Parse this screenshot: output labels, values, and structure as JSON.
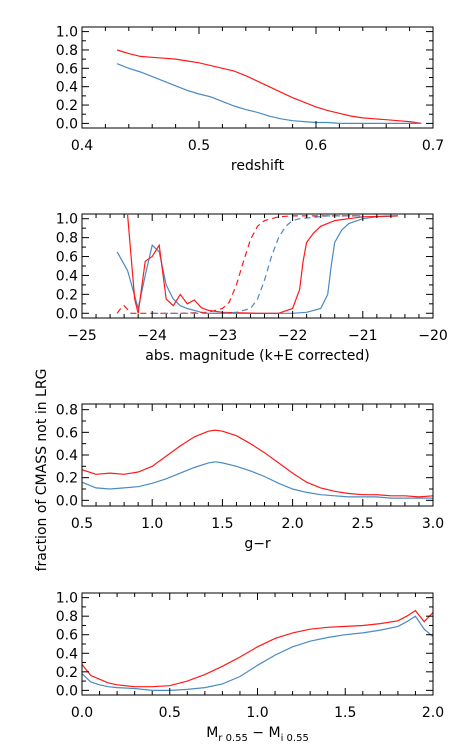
{
  "figure": {
    "shared_ylabel": "fraction of CMASS not in LRG"
  },
  "colors": {
    "red": "#ff1a1a",
    "blue": "#4a8ac4",
    "axis": "#000000"
  },
  "chart_data": [
    {
      "type": "line",
      "title": "",
      "xlabel": "redshift",
      "ylabel": "",
      "xlim": [
        0.4,
        0.7
      ],
      "ylim": [
        -0.05,
        1.05
      ],
      "xticks": [
        0.4,
        0.5,
        0.6,
        0.7
      ],
      "xtick_labels": [
        "0.4",
        "0.5",
        "0.6",
        "0.7"
      ],
      "yticks": [
        0.0,
        0.2,
        0.4,
        0.6,
        0.8,
        1.0
      ],
      "ytick_labels": [
        "0.0",
        "0.2",
        "0.4",
        "0.6",
        "0.8",
        "1.0"
      ],
      "grid": false,
      "series": [
        {
          "color": "red",
          "style": "solid",
          "x": [
            0.43,
            0.44,
            0.45,
            0.46,
            0.47,
            0.48,
            0.49,
            0.5,
            0.51,
            0.52,
            0.53,
            0.54,
            0.55,
            0.56,
            0.57,
            0.58,
            0.59,
            0.6,
            0.61,
            0.62,
            0.63,
            0.64,
            0.65,
            0.66,
            0.67,
            0.68,
            0.69
          ],
          "y": [
            0.8,
            0.76,
            0.73,
            0.72,
            0.71,
            0.7,
            0.68,
            0.66,
            0.63,
            0.6,
            0.57,
            0.52,
            0.46,
            0.4,
            0.34,
            0.28,
            0.23,
            0.18,
            0.14,
            0.11,
            0.08,
            0.06,
            0.05,
            0.04,
            0.03,
            0.02,
            0.0
          ]
        },
        {
          "color": "blue",
          "style": "solid",
          "x": [
            0.43,
            0.44,
            0.45,
            0.46,
            0.47,
            0.48,
            0.49,
            0.5,
            0.51,
            0.52,
            0.53,
            0.54,
            0.55,
            0.56,
            0.57,
            0.58,
            0.59,
            0.6,
            0.61,
            0.62,
            0.63,
            0.64,
            0.65,
            0.66,
            0.67,
            0.68,
            0.69
          ],
          "y": [
            0.65,
            0.6,
            0.56,
            0.51,
            0.46,
            0.41,
            0.36,
            0.32,
            0.29,
            0.24,
            0.19,
            0.15,
            0.12,
            0.08,
            0.05,
            0.03,
            0.02,
            0.01,
            0.01,
            0.0,
            0.0,
            0.0,
            0.0,
            0.0,
            0.0,
            0.0,
            0.0
          ]
        }
      ]
    },
    {
      "type": "line",
      "title": "",
      "xlabel": "abs. magnitude (k+E corrected)",
      "ylabel": "",
      "xlim": [
        -25,
        -20
      ],
      "ylim": [
        -0.05,
        1.05
      ],
      "xticks": [
        -25,
        -24,
        -23,
        -22,
        -21,
        -20
      ],
      "xtick_labels": [
        "−25",
        "−24",
        "−23",
        "−22",
        "−21",
        "−20"
      ],
      "yticks": [
        0.0,
        0.2,
        0.4,
        0.6,
        0.8,
        1.0
      ],
      "ytick_labels": [
        "0.0",
        "0.2",
        "0.4",
        "0.6",
        "0.8",
        "1.0"
      ],
      "grid": false,
      "series": [
        {
          "color": "blue",
          "style": "solid",
          "x": [
            -24.5,
            -24.35,
            -24.2,
            -24.1,
            -24.0,
            -23.9,
            -23.8,
            -23.7,
            -23.6,
            -23.5,
            -23.4,
            -23.3,
            -23.2,
            -23.0,
            -22.5,
            -22.0,
            -21.8,
            -21.6,
            -21.5,
            -21.45,
            -21.4,
            -21.3,
            -21.2,
            -21.0,
            -20.8,
            -20.5
          ],
          "y": [
            0.65,
            0.45,
            0.05,
            0.4,
            0.72,
            0.65,
            0.3,
            0.15,
            0.08,
            0.05,
            0.03,
            0.01,
            0.0,
            0.0,
            0.0,
            0.0,
            0.01,
            0.05,
            0.2,
            0.5,
            0.75,
            0.88,
            0.95,
            1.0,
            1.02,
            1.03
          ]
        },
        {
          "color": "red",
          "style": "solid",
          "x": [
            -24.35,
            -24.3,
            -24.25,
            -24.2,
            -24.1,
            -24.0,
            -23.9,
            -23.8,
            -23.7,
            -23.6,
            -23.5,
            -23.4,
            -23.3,
            -23.2,
            -23.0,
            -22.5,
            -22.2,
            -22.0,
            -21.9,
            -21.85,
            -21.8,
            -21.7,
            -21.6,
            -21.4,
            -21.2,
            -21.0,
            -20.5
          ],
          "y": [
            1.04,
            0.6,
            0.15,
            0.0,
            0.55,
            0.6,
            0.72,
            0.15,
            0.08,
            0.2,
            0.1,
            0.14,
            0.06,
            0.03,
            0.01,
            0.0,
            0.0,
            0.05,
            0.25,
            0.55,
            0.75,
            0.85,
            0.92,
            0.98,
            1.0,
            1.02,
            1.03
          ]
        },
        {
          "color": "red",
          "style": "dashed",
          "x": [
            -24.5,
            -24.45,
            -24.4,
            -24.3,
            -24.0,
            -23.6,
            -23.2,
            -23.0,
            -22.9,
            -22.8,
            -22.7,
            -22.6,
            -22.5,
            -22.4,
            -22.3,
            -22.2,
            -22.0,
            -21.5,
            -21.0
          ],
          "y": [
            0.0,
            0.05,
            0.08,
            0.0,
            0.0,
            0.0,
            0.01,
            0.05,
            0.12,
            0.3,
            0.55,
            0.78,
            0.92,
            0.98,
            1.0,
            1.02,
            1.03,
            1.03,
            1.03
          ]
        },
        {
          "color": "blue",
          "style": "dashed",
          "x": [
            -24.0,
            -23.5,
            -23.0,
            -22.8,
            -22.6,
            -22.5,
            -22.4,
            -22.3,
            -22.2,
            -22.1,
            -22.0,
            -21.9,
            -21.5,
            -21.0
          ],
          "y": [
            0.0,
            0.0,
            0.0,
            0.01,
            0.05,
            0.15,
            0.35,
            0.6,
            0.8,
            0.92,
            0.98,
            1.0,
            1.03,
            1.03
          ]
        }
      ]
    },
    {
      "type": "line",
      "title": "",
      "xlabel": "g−r",
      "ylabel": "",
      "xlim": [
        0.5,
        3.0
      ],
      "ylim": [
        -0.05,
        0.85
      ],
      "xticks": [
        0.5,
        1.0,
        1.5,
        2.0,
        2.5,
        3.0
      ],
      "xtick_labels": [
        "0.5",
        "1.0",
        "1.5",
        "2.0",
        "2.5",
        "3.0"
      ],
      "yticks": [
        0.0,
        0.2,
        0.4,
        0.6,
        0.8
      ],
      "ytick_labels": [
        "0.0",
        "0.2",
        "0.4",
        "0.6",
        "0.8"
      ],
      "grid": false,
      "series": [
        {
          "color": "red",
          "style": "solid",
          "x": [
            0.5,
            0.6,
            0.7,
            0.8,
            0.9,
            1.0,
            1.1,
            1.2,
            1.3,
            1.4,
            1.45,
            1.5,
            1.6,
            1.7,
            1.8,
            1.9,
            2.0,
            2.1,
            2.2,
            2.3,
            2.4,
            2.5,
            2.6,
            2.7,
            2.8,
            2.9,
            3.0
          ],
          "y": [
            0.27,
            0.23,
            0.24,
            0.23,
            0.25,
            0.3,
            0.39,
            0.48,
            0.56,
            0.61,
            0.62,
            0.61,
            0.57,
            0.5,
            0.42,
            0.33,
            0.24,
            0.16,
            0.11,
            0.08,
            0.06,
            0.05,
            0.05,
            0.04,
            0.04,
            0.03,
            0.04
          ]
        },
        {
          "color": "blue",
          "style": "solid",
          "x": [
            0.5,
            0.6,
            0.7,
            0.8,
            0.9,
            1.0,
            1.1,
            1.2,
            1.3,
            1.4,
            1.45,
            1.5,
            1.6,
            1.7,
            1.8,
            1.9,
            2.0,
            2.1,
            2.2,
            2.3,
            2.4,
            2.5,
            2.6,
            2.7,
            2.8,
            2.9,
            3.0
          ],
          "y": [
            0.16,
            0.11,
            0.1,
            0.11,
            0.12,
            0.15,
            0.19,
            0.24,
            0.29,
            0.33,
            0.34,
            0.33,
            0.3,
            0.26,
            0.21,
            0.15,
            0.1,
            0.07,
            0.05,
            0.04,
            0.03,
            0.03,
            0.03,
            0.02,
            0.02,
            0.02,
            0.02
          ]
        }
      ]
    },
    {
      "type": "line",
      "title": "",
      "xlabel": "M_r 0.55 − M_i 0.55",
      "xlabel_parts": {
        "a": "M",
        "a_sub": "r 0.55",
        "sep": " − ",
        "b": "M",
        "b_sub": "i 0.55"
      },
      "ylabel": "",
      "xlim": [
        0.0,
        2.0
      ],
      "ylim": [
        -0.05,
        1.05
      ],
      "xticks": [
        0.0,
        0.5,
        1.0,
        1.5,
        2.0
      ],
      "xtick_labels": [
        "0.0",
        "0.5",
        "1.0",
        "1.5",
        "2.0"
      ],
      "yticks": [
        0.0,
        0.2,
        0.4,
        0.6,
        0.8,
        1.0
      ],
      "ytick_labels": [
        "0.0",
        "0.2",
        "0.4",
        "0.6",
        "0.8",
        "1.0"
      ],
      "grid": false,
      "series": [
        {
          "color": "red",
          "style": "solid",
          "x": [
            0.0,
            0.05,
            0.1,
            0.15,
            0.2,
            0.3,
            0.4,
            0.5,
            0.6,
            0.7,
            0.8,
            0.9,
            1.0,
            1.1,
            1.2,
            1.3,
            1.4,
            1.5,
            1.6,
            1.7,
            1.8,
            1.85,
            1.9,
            1.95,
            2.0
          ],
          "y": [
            0.28,
            0.16,
            0.12,
            0.08,
            0.06,
            0.04,
            0.04,
            0.05,
            0.1,
            0.17,
            0.26,
            0.36,
            0.47,
            0.56,
            0.62,
            0.66,
            0.68,
            0.69,
            0.7,
            0.72,
            0.75,
            0.8,
            0.86,
            0.74,
            0.84
          ]
        },
        {
          "color": "blue",
          "style": "solid",
          "x": [
            0.0,
            0.05,
            0.1,
            0.15,
            0.2,
            0.3,
            0.4,
            0.5,
            0.6,
            0.7,
            0.8,
            0.9,
            1.0,
            1.1,
            1.2,
            1.3,
            1.4,
            1.5,
            1.6,
            1.7,
            1.8,
            1.85,
            1.9,
            1.95,
            2.0
          ],
          "y": [
            0.18,
            0.09,
            0.06,
            0.04,
            0.03,
            0.02,
            0.0,
            0.0,
            0.01,
            0.03,
            0.07,
            0.15,
            0.27,
            0.38,
            0.47,
            0.53,
            0.57,
            0.6,
            0.62,
            0.65,
            0.69,
            0.74,
            0.8,
            0.66,
            0.58
          ]
        }
      ]
    }
  ]
}
